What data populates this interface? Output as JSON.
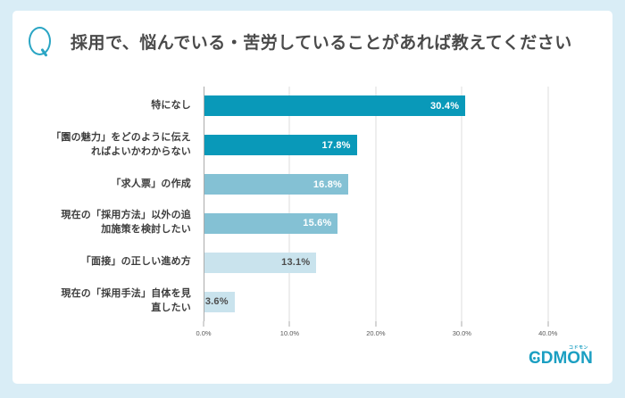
{
  "header": {
    "title": "採用で、悩んでいる・苦労していることがあれば教えてください",
    "q_icon": "Q"
  },
  "chart_data": {
    "type": "bar",
    "orientation": "horizontal",
    "title": "採用で、悩んでいる・苦労していることがあれば教えてください",
    "categories": [
      "特になし",
      "「園の魅力」をどのように伝えればよいかわからない",
      "「求人票」の作成",
      "現在の「採用方法」以外の追加施策を検討したい",
      "「面接」の正しい進め方",
      "現在の「採用手法」自体を見直したい"
    ],
    "label_lines": [
      [
        "特になし"
      ],
      [
        "「園の魅力」をどのように伝え",
        "ればよいかわからない"
      ],
      [
        "「求人票」の作成"
      ],
      [
        "現在の「採用方法」以外の追",
        "加施策を検討したい"
      ],
      [
        "「面接」の正しい進め方"
      ],
      [
        "現在の「採用手法」自体を見",
        "直したい"
      ]
    ],
    "values": [
      30.4,
      17.8,
      16.8,
      15.6,
      13.1,
      3.6
    ],
    "value_labels": [
      "30.4%",
      "17.8%",
      "16.8%",
      "15.6%",
      "13.1%",
      "3.6%"
    ],
    "bar_colors": [
      "#0999b9",
      "#0999b9",
      "#84c1d4",
      "#84c1d4",
      "#c9e3ed",
      "#c9e3ed"
    ],
    "value_label_colors": [
      "#ffffff",
      "#ffffff",
      "#ffffff",
      "#ffffff",
      "#4d4d4d",
      "#4d4d4d"
    ],
    "xlim": [
      0,
      45
    ],
    "x_ticks": [
      "0.0%",
      "10.0%",
      "20.0%",
      "30.0%",
      "40.0%"
    ],
    "x_tick_values": [
      0,
      10,
      20,
      30,
      40
    ],
    "grid": true,
    "legend": false
  },
  "logo": {
    "kana": "コドモン",
    "c": "C",
    "dm": "DM",
    "o": "O",
    "n": "N",
    "full_text": "CODMON",
    "color": "#1b9fc2"
  },
  "colors": {
    "background": "#d9edf6",
    "card": "#ffffff",
    "accent_teal": "#2aa5c4",
    "bar_dark": "#0999b9",
    "bar_medium": "#84c1d4",
    "bar_light": "#c9e3ed",
    "gridline": "#dcdcdc",
    "axis_line": "#ababab",
    "title_text": "#4a4a4a",
    "tick_text": "#595959"
  }
}
